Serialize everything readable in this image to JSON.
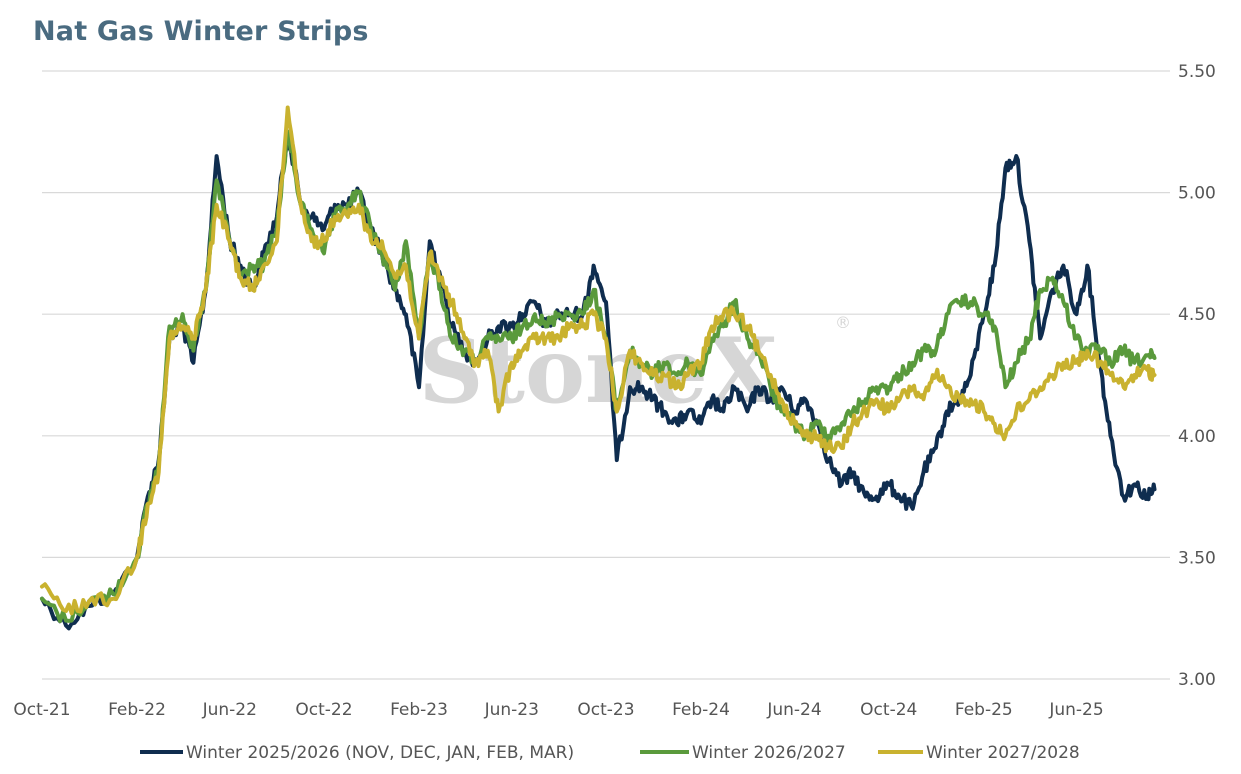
{
  "chart_data": {
    "type": "line",
    "title": "Nat Gas Winter Strips",
    "watermark": "StoneX",
    "watermark_mark": "®",
    "xlabel": "",
    "ylabel": "",
    "x_tick_labels": [
      "Oct-21",
      "Feb-22",
      "Jun-22",
      "Oct-22",
      "Feb-23",
      "Jun-23",
      "Oct-23",
      "Feb-24",
      "Jun-24",
      "Oct-24",
      "Feb-25",
      "Jun-25"
    ],
    "y_tick_labels": [
      "3.00",
      "3.50",
      "4.00",
      "4.50",
      "5.00",
      "5.50"
    ],
    "ylim": [
      3.0,
      5.5
    ],
    "xlim": [
      "2021-10-01",
      "2025-09-10"
    ],
    "grid": "horizontal",
    "legend_position": "bottom",
    "x": [
      "2021-10-01",
      "2021-11-01",
      "2021-12-01",
      "2022-01-01",
      "2022-02-01",
      "2022-02-15",
      "2022-03-01",
      "2022-03-15",
      "2022-04-01",
      "2022-04-15",
      "2022-05-01",
      "2022-05-15",
      "2022-06-01",
      "2022-06-15",
      "2022-07-01",
      "2022-07-15",
      "2022-08-01",
      "2022-08-15",
      "2022-09-01",
      "2022-09-15",
      "2022-10-01",
      "2022-10-15",
      "2022-11-01",
      "2022-11-15",
      "2022-12-01",
      "2022-12-15",
      "2023-01-01",
      "2023-01-15",
      "2023-02-01",
      "2023-02-15",
      "2023-03-01",
      "2023-03-15",
      "2023-04-01",
      "2023-04-15",
      "2023-05-01",
      "2023-05-15",
      "2023-06-01",
      "2023-06-15",
      "2023-07-01",
      "2023-07-15",
      "2023-08-01",
      "2023-08-15",
      "2023-09-01",
      "2023-09-15",
      "2023-10-01",
      "2023-10-15",
      "2023-11-01",
      "2023-11-15",
      "2023-12-01",
      "2023-12-15",
      "2024-01-01",
      "2024-01-15",
      "2024-02-01",
      "2024-02-15",
      "2024-03-01",
      "2024-03-15",
      "2024-04-01",
      "2024-04-15",
      "2024-05-01",
      "2024-05-15",
      "2024-06-01",
      "2024-06-15",
      "2024-07-01",
      "2024-07-15",
      "2024-08-01",
      "2024-08-15",
      "2024-09-01",
      "2024-09-15",
      "2024-10-01",
      "2024-10-15",
      "2024-11-01",
      "2024-11-15",
      "2024-12-01",
      "2024-12-15",
      "2025-01-01",
      "2025-01-15",
      "2025-02-01",
      "2025-02-15",
      "2025-03-01",
      "2025-03-15",
      "2025-04-01",
      "2025-04-15",
      "2025-05-01",
      "2025-05-15",
      "2025-06-01",
      "2025-06-15",
      "2025-07-01",
      "2025-07-15",
      "2025-08-01",
      "2025-08-15",
      "2025-09-01",
      "2025-09-10"
    ],
    "series": [
      {
        "name": "Winter 2025/2026 (NOV, DEC, JAN, FEB, MAR)",
        "color": "#0f2d4f",
        "values": [
          3.33,
          3.22,
          3.3,
          3.35,
          3.5,
          3.75,
          3.9,
          4.4,
          4.45,
          4.3,
          4.6,
          5.15,
          4.8,
          4.7,
          4.6,
          4.75,
          4.9,
          5.25,
          4.95,
          4.9,
          4.85,
          4.95,
          4.95,
          5.0,
          4.85,
          4.75,
          4.6,
          4.5,
          4.2,
          4.8,
          4.65,
          4.45,
          4.35,
          4.3,
          4.4,
          4.45,
          4.45,
          4.5,
          4.55,
          4.45,
          4.5,
          4.5,
          4.5,
          4.7,
          4.55,
          3.9,
          4.2,
          4.2,
          4.15,
          4.1,
          4.05,
          4.1,
          4.05,
          4.15,
          4.1,
          4.2,
          4.1,
          4.2,
          4.15,
          4.2,
          4.1,
          4.15,
          4.05,
          3.9,
          3.8,
          3.85,
          3.75,
          3.75,
          3.8,
          3.75,
          3.7,
          3.85,
          3.95,
          4.1,
          4.15,
          4.25,
          4.5,
          4.7,
          5.1,
          5.15,
          4.8,
          4.4,
          4.6,
          4.7,
          4.5,
          4.7,
          4.3,
          4.0,
          3.75,
          3.8,
          3.75,
          3.78
        ]
      },
      {
        "name": "Winter 2026/2027",
        "color": "#5a9a3c",
        "values": [
          3.33,
          3.24,
          3.32,
          3.35,
          3.5,
          3.72,
          3.88,
          4.45,
          4.5,
          4.35,
          4.6,
          5.05,
          4.8,
          4.65,
          4.7,
          4.7,
          4.85,
          5.25,
          4.95,
          4.85,
          4.75,
          4.9,
          4.95,
          5.0,
          4.85,
          4.75,
          4.6,
          4.8,
          4.4,
          4.75,
          4.6,
          4.4,
          4.35,
          4.3,
          4.4,
          4.4,
          4.4,
          4.45,
          4.5,
          4.45,
          4.5,
          4.5,
          4.5,
          4.6,
          4.4,
          4.1,
          4.35,
          4.3,
          4.25,
          4.3,
          4.25,
          4.3,
          4.25,
          4.4,
          4.45,
          4.55,
          4.4,
          4.35,
          4.2,
          4.1,
          4.05,
          4.0,
          4.05,
          4.0,
          4.05,
          4.1,
          4.15,
          4.2,
          4.2,
          4.25,
          4.3,
          4.35,
          4.35,
          4.5,
          4.55,
          4.55,
          4.5,
          4.45,
          4.2,
          4.3,
          4.4,
          4.6,
          4.65,
          4.55,
          4.4,
          4.35,
          4.35,
          4.3,
          4.35,
          4.3,
          4.33,
          4.32
        ]
      },
      {
        "name": "Winter 2027/2028",
        "color": "#c9b22f",
        "values": [
          3.38,
          3.28,
          3.32,
          3.33,
          3.5,
          3.72,
          3.85,
          4.4,
          4.45,
          4.4,
          4.6,
          4.95,
          4.8,
          4.65,
          4.6,
          4.7,
          4.8,
          5.35,
          4.95,
          4.8,
          4.8,
          4.9,
          4.9,
          4.95,
          4.8,
          4.8,
          4.65,
          4.7,
          4.4,
          4.75,
          4.65,
          4.55,
          4.4,
          4.3,
          4.35,
          4.1,
          4.3,
          4.35,
          4.4,
          4.4,
          4.4,
          4.45,
          4.45,
          4.5,
          4.4,
          4.1,
          4.35,
          4.3,
          4.25,
          4.25,
          4.2,
          4.25,
          4.3,
          4.45,
          4.5,
          4.5,
          4.45,
          4.35,
          4.25,
          4.15,
          4.05,
          4.0,
          4.0,
          3.95,
          3.95,
          4.05,
          4.1,
          4.15,
          4.1,
          4.15,
          4.2,
          4.15,
          4.25,
          4.2,
          4.15,
          4.15,
          4.1,
          4.05,
          4.0,
          4.1,
          4.15,
          4.2,
          4.25,
          4.3,
          4.3,
          4.35,
          4.3,
          4.25,
          4.2,
          4.25,
          4.27,
          4.25
        ]
      }
    ]
  }
}
